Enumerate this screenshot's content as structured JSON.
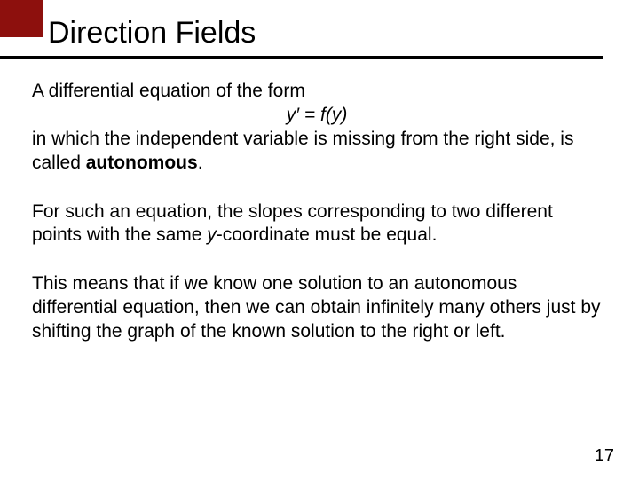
{
  "colors": {
    "red_block": "#8d100d",
    "underline": "#000000",
    "text": "#000000",
    "background": "#ffffff"
  },
  "header": {
    "title": "Direction Fields"
  },
  "paragraphs": {
    "p1_intro": "A differential equation of the form",
    "equation_y": "y",
    "equation_prime_eq": "′ = ",
    "equation_f": "f",
    "equation_paren_open": "(",
    "equation_inner_y": "y",
    "equation_paren_close": ")",
    "p1_rest_a": "in which the independent variable is missing from the right side, is called ",
    "p1_bold": "autonomous",
    "p1_period": ".",
    "p2_a": "For such an equation, the slopes corresponding to two different points with the same ",
    "p2_y": "y",
    "p2_b": "-coordinate must be equal.",
    "p3": "This means that if we know one solution to an autonomous differential equation, then we can obtain infinitely many others just by shifting the graph of the known solution to the right or left."
  },
  "page_number": "17"
}
